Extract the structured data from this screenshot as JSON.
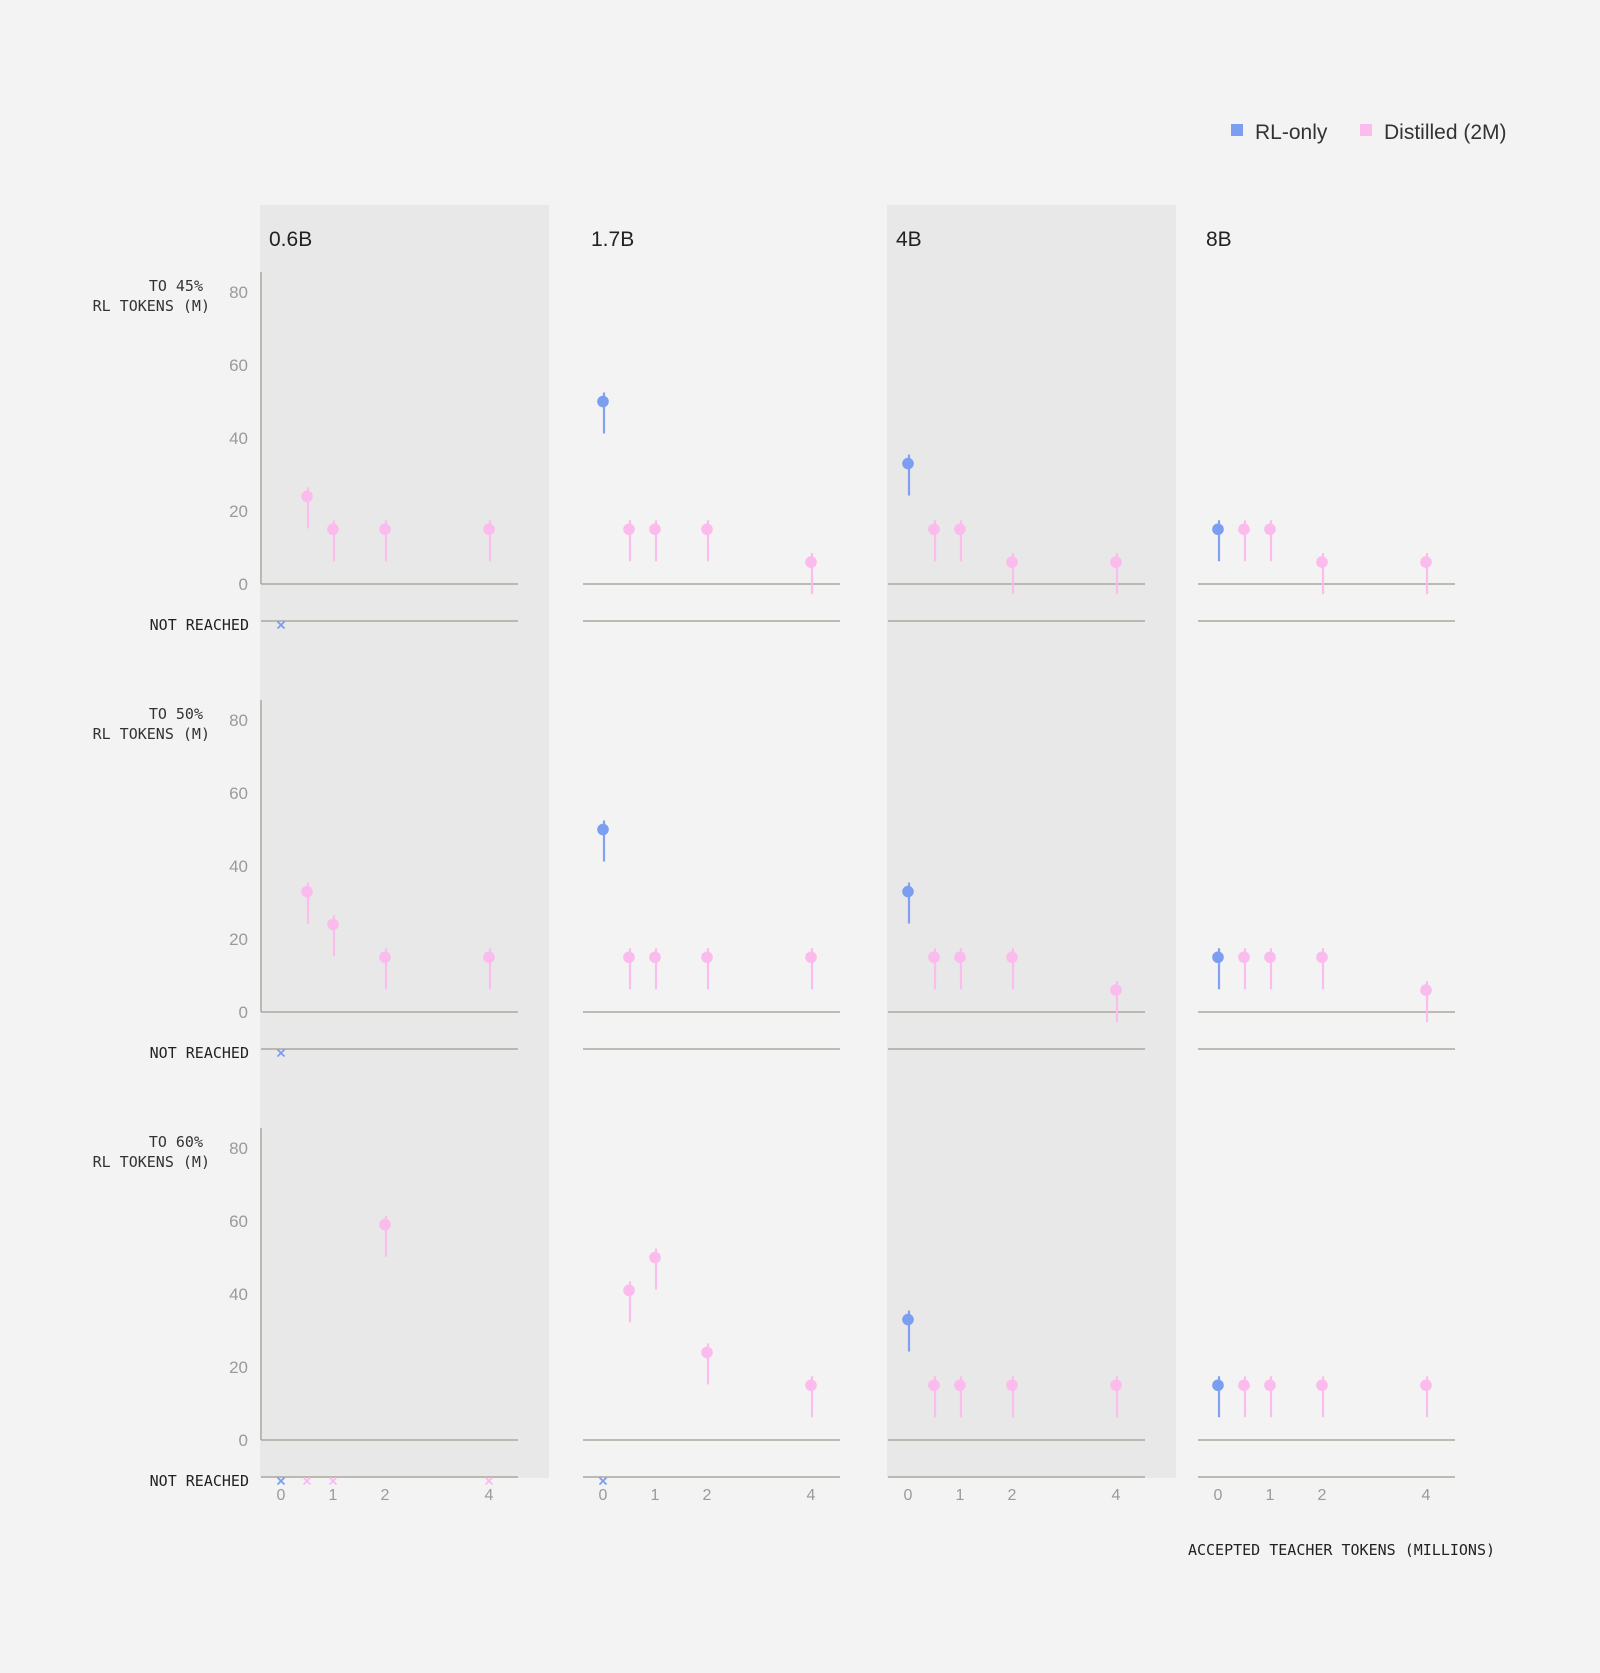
{
  "legend": [
    {
      "name": "RL-only",
      "color": "#7b9ef0"
    },
    {
      "name": "Distilled (2M)",
      "color": "#fbbbed"
    }
  ],
  "not_reached_label": "NOT REACHED",
  "x_axis_label": "ACCEPTED TEACHER TOKENS (MILLIONS)",
  "chart_data": {
    "type": "scatter",
    "models": [
      "0.6B",
      "1.7B",
      "4B",
      "8B"
    ],
    "rows": [
      {
        "label_line1": "TO 45%",
        "label_line2": "RL TOKENS (M)"
      },
      {
        "label_line1": "TO 50%",
        "label_line2": "RL TOKENS (M)"
      },
      {
        "label_line1": "TO 60%",
        "label_line2": "RL TOKENS (M)"
      }
    ],
    "x_ticks": [
      0,
      1,
      2,
      4
    ],
    "y_ticks": [
      0,
      20,
      40,
      60,
      80
    ],
    "ylim": [
      0,
      80
    ],
    "series_colors": {
      "RL-only": "#7b9ef0",
      "Distilled (2M)": "#fbbbed"
    },
    "panels": [
      {
        "model": "0.6B",
        "row": 0,
        "points": [
          {
            "x": 0,
            "y": null,
            "series": "RL-only"
          },
          {
            "x": 0.5,
            "y": 24,
            "series": "Distilled (2M)"
          },
          {
            "x": 1,
            "y": 15,
            "series": "Distilled (2M)"
          },
          {
            "x": 2,
            "y": 15,
            "series": "Distilled (2M)"
          },
          {
            "x": 4,
            "y": 15,
            "series": "Distilled (2M)"
          }
        ]
      },
      {
        "model": "1.7B",
        "row": 0,
        "points": [
          {
            "x": 0,
            "y": 50,
            "series": "RL-only"
          },
          {
            "x": 0.5,
            "y": 15,
            "series": "Distilled (2M)"
          },
          {
            "x": 1,
            "y": 15,
            "series": "Distilled (2M)"
          },
          {
            "x": 2,
            "y": 15,
            "series": "Distilled (2M)"
          },
          {
            "x": 4,
            "y": 6,
            "series": "Distilled (2M)"
          }
        ]
      },
      {
        "model": "4B",
        "row": 0,
        "points": [
          {
            "x": 0,
            "y": 33,
            "series": "RL-only"
          },
          {
            "x": 0.5,
            "y": 15,
            "series": "Distilled (2M)"
          },
          {
            "x": 1,
            "y": 15,
            "series": "Distilled (2M)"
          },
          {
            "x": 2,
            "y": 6,
            "series": "Distilled (2M)"
          },
          {
            "x": 4,
            "y": 6,
            "series": "Distilled (2M)"
          }
        ]
      },
      {
        "model": "8B",
        "row": 0,
        "points": [
          {
            "x": 0,
            "y": 15,
            "series": "RL-only"
          },
          {
            "x": 0.5,
            "y": 15,
            "series": "Distilled (2M)"
          },
          {
            "x": 1,
            "y": 15,
            "series": "Distilled (2M)"
          },
          {
            "x": 2,
            "y": 6,
            "series": "Distilled (2M)"
          },
          {
            "x": 4,
            "y": 6,
            "series": "Distilled (2M)"
          }
        ]
      },
      {
        "model": "0.6B",
        "row": 1,
        "points": [
          {
            "x": 0,
            "y": null,
            "series": "RL-only"
          },
          {
            "x": 0.5,
            "y": 33,
            "series": "Distilled (2M)"
          },
          {
            "x": 1,
            "y": 24,
            "series": "Distilled (2M)"
          },
          {
            "x": 2,
            "y": 15,
            "series": "Distilled (2M)"
          },
          {
            "x": 4,
            "y": 15,
            "series": "Distilled (2M)"
          }
        ]
      },
      {
        "model": "1.7B",
        "row": 1,
        "points": [
          {
            "x": 0,
            "y": 50,
            "series": "RL-only"
          },
          {
            "x": 0.5,
            "y": 15,
            "series": "Distilled (2M)"
          },
          {
            "x": 1,
            "y": 15,
            "series": "Distilled (2M)"
          },
          {
            "x": 2,
            "y": 15,
            "series": "Distilled (2M)"
          },
          {
            "x": 4,
            "y": 15,
            "series": "Distilled (2M)"
          }
        ]
      },
      {
        "model": "4B",
        "row": 1,
        "points": [
          {
            "x": 0,
            "y": 33,
            "series": "RL-only"
          },
          {
            "x": 0.5,
            "y": 15,
            "series": "Distilled (2M)"
          },
          {
            "x": 1,
            "y": 15,
            "series": "Distilled (2M)"
          },
          {
            "x": 2,
            "y": 15,
            "series": "Distilled (2M)"
          },
          {
            "x": 4,
            "y": 6,
            "series": "Distilled (2M)"
          }
        ]
      },
      {
        "model": "8B",
        "row": 1,
        "points": [
          {
            "x": 0,
            "y": 15,
            "series": "RL-only"
          },
          {
            "x": 0.5,
            "y": 15,
            "series": "Distilled (2M)"
          },
          {
            "x": 1,
            "y": 15,
            "series": "Distilled (2M)"
          },
          {
            "x": 2,
            "y": 15,
            "series": "Distilled (2M)"
          },
          {
            "x": 4,
            "y": 6,
            "series": "Distilled (2M)"
          }
        ]
      },
      {
        "model": "0.6B",
        "row": 2,
        "points": [
          {
            "x": 0,
            "y": null,
            "series": "RL-only"
          },
          {
            "x": 0.5,
            "y": null,
            "series": "Distilled (2M)"
          },
          {
            "x": 1,
            "y": null,
            "series": "Distilled (2M)"
          },
          {
            "x": 2,
            "y": 59,
            "series": "Distilled (2M)"
          },
          {
            "x": 4,
            "y": null,
            "series": "Distilled (2M)"
          }
        ]
      },
      {
        "model": "1.7B",
        "row": 2,
        "points": [
          {
            "x": 0,
            "y": null,
            "series": "RL-only"
          },
          {
            "x": 0.5,
            "y": 41,
            "series": "Distilled (2M)"
          },
          {
            "x": 1,
            "y": 50,
            "series": "Distilled (2M)"
          },
          {
            "x": 2,
            "y": 24,
            "series": "Distilled (2M)"
          },
          {
            "x": 4,
            "y": 15,
            "series": "Distilled (2M)"
          }
        ]
      },
      {
        "model": "4B",
        "row": 2,
        "points": [
          {
            "x": 0,
            "y": 33,
            "series": "RL-only"
          },
          {
            "x": 0.5,
            "y": 15,
            "series": "Distilled (2M)"
          },
          {
            "x": 1,
            "y": 15,
            "series": "Distilled (2M)"
          },
          {
            "x": 2,
            "y": 15,
            "series": "Distilled (2M)"
          },
          {
            "x": 4,
            "y": 15,
            "series": "Distilled (2M)"
          }
        ]
      },
      {
        "model": "8B",
        "row": 2,
        "points": [
          {
            "x": 0,
            "y": 15,
            "series": "RL-only"
          },
          {
            "x": 0.5,
            "y": 15,
            "series": "Distilled (2M)"
          },
          {
            "x": 1,
            "y": 15,
            "series": "Distilled (2M)"
          },
          {
            "x": 2,
            "y": 15,
            "series": "Distilled (2M)"
          },
          {
            "x": 4,
            "y": 15,
            "series": "Distilled (2M)"
          }
        ]
      }
    ]
  }
}
